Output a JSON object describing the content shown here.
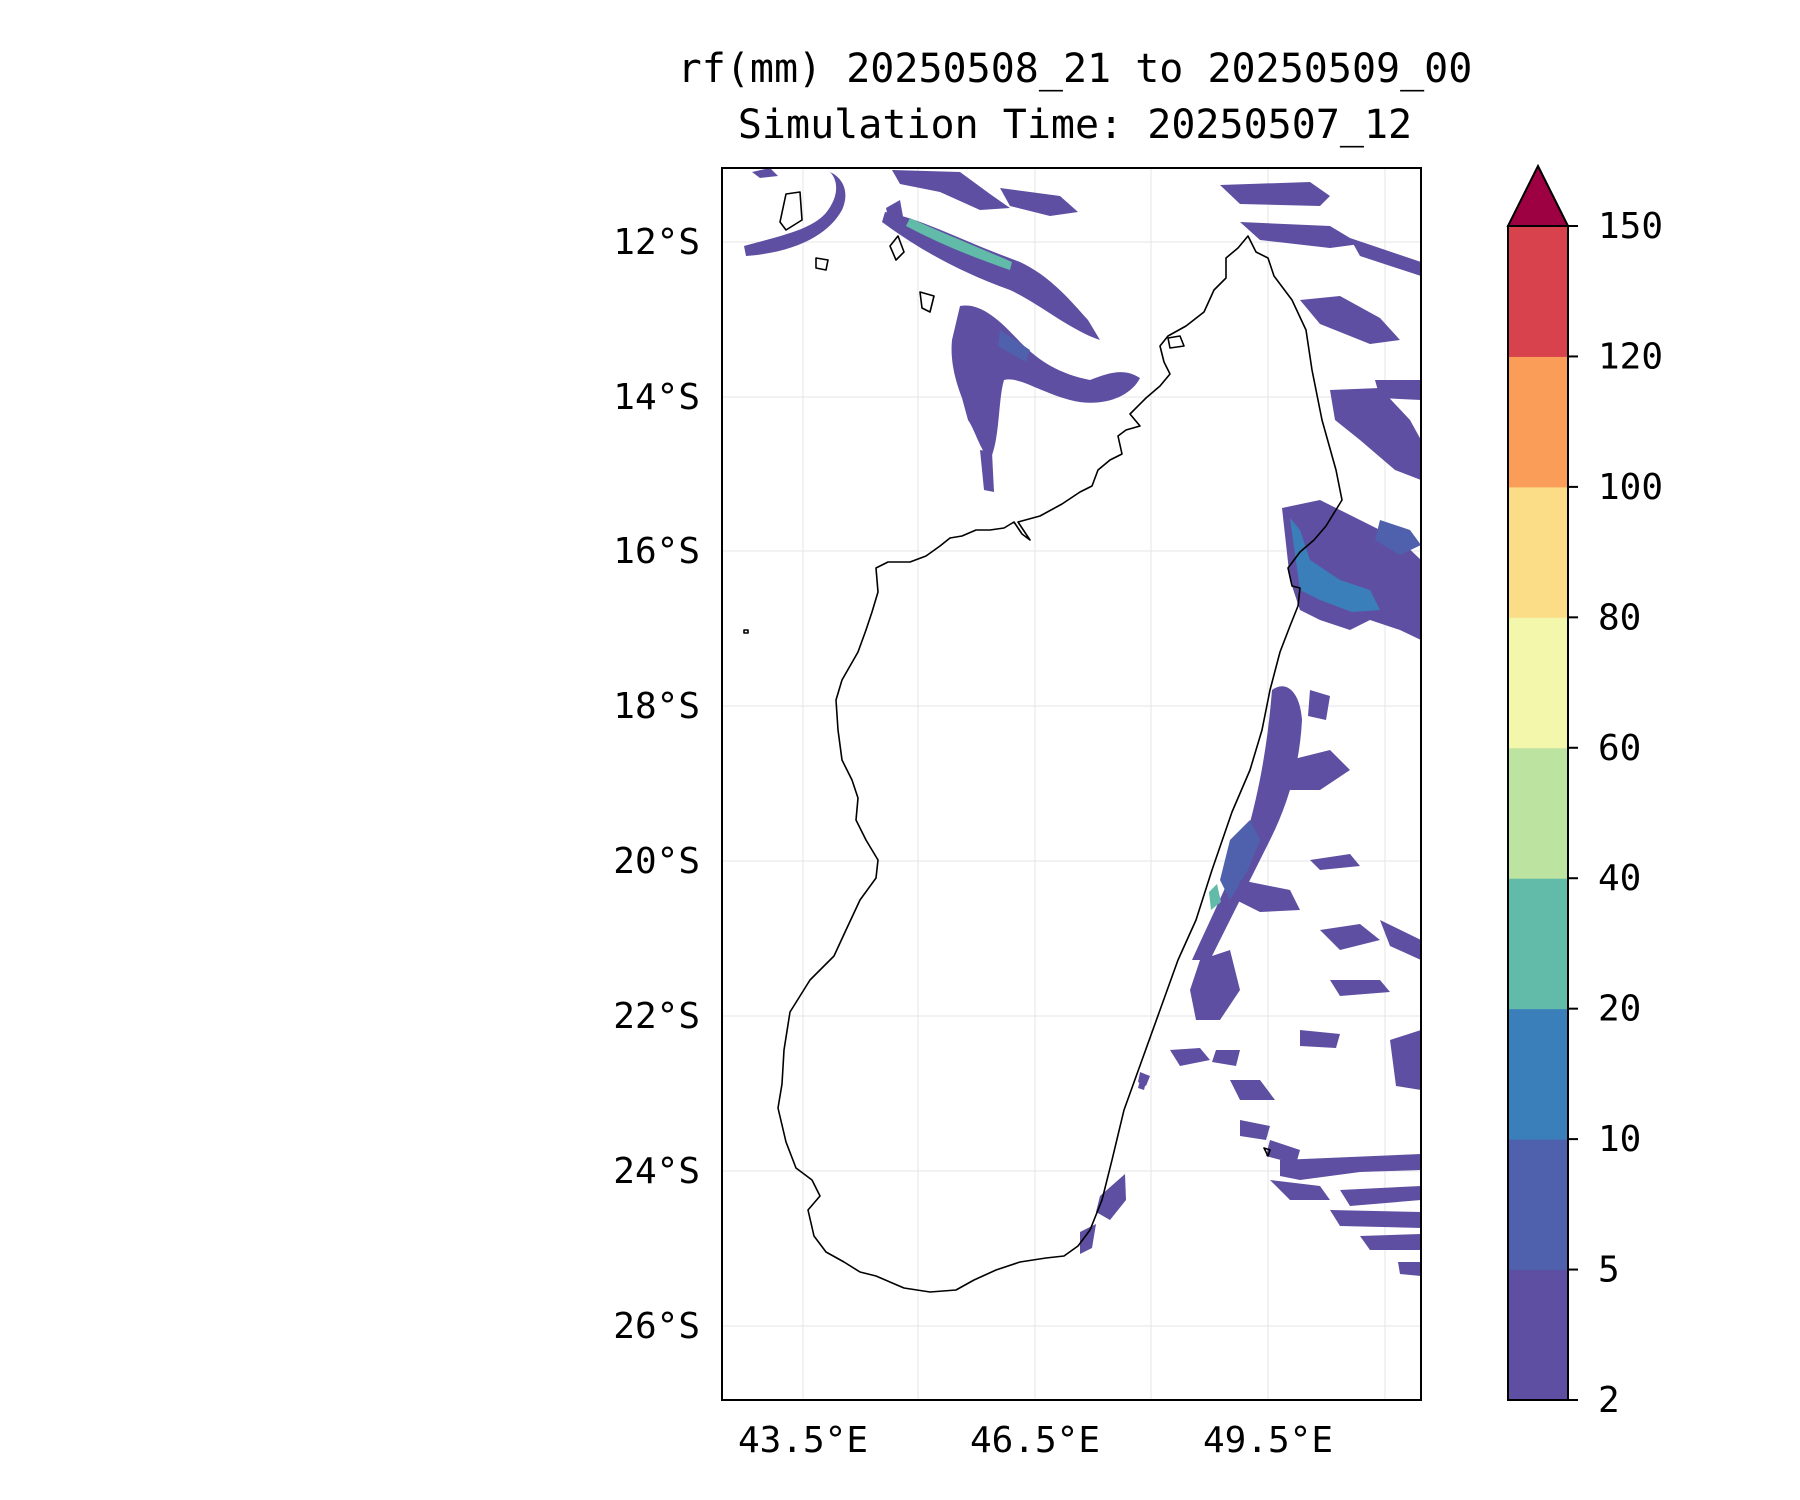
{
  "title": {
    "line1": "rf(mm) 20250508_21 to 20250509_00",
    "line2": "Simulation Time: 20250507_12"
  },
  "map": {
    "lon_range": [
      42.1,
      51.1
    ],
    "lat_range": [
      -26.9,
      -11.0
    ],
    "lat_ticks": [
      "12°S",
      "14°S",
      "16°S",
      "18°S",
      "20°S",
      "22°S",
      "24°S",
      "26°S"
    ],
    "lon_ticks": [
      "43.5°E",
      "46.5°E",
      "49.5°E"
    ],
    "grid": true
  },
  "colorbar": {
    "levels": [
      "2",
      "5",
      "10",
      "20",
      "40",
      "60",
      "80",
      "100",
      "120",
      "150"
    ],
    "colors": [
      "#5e4fa2",
      "#4f61ad",
      "#3a7fb9",
      "#62bba9",
      "#bde3a1",
      "#f2f7ac",
      "#fbdd88",
      "#f99d59",
      "#d7424c",
      "#9e0142"
    ],
    "extend": "max"
  },
  "rain_colors": {
    "light": "#5e4fa2",
    "mid": "#4f61ad",
    "heavy": "#3a7fb9",
    "peak": "#62bba9"
  }
}
